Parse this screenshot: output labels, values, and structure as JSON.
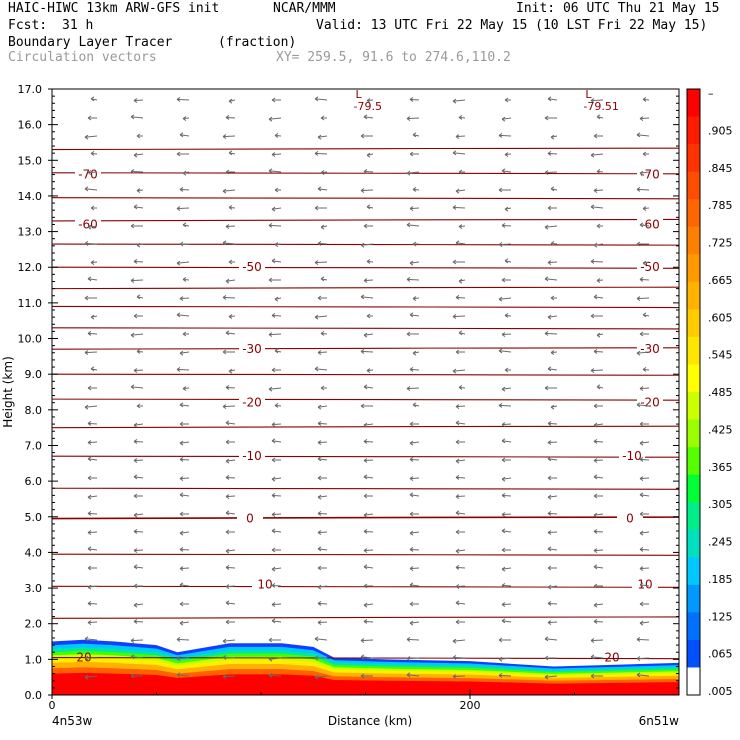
{
  "header": {
    "model": "HAIC-HIWC 13km ARW-GFS init",
    "org": "NCAR/MMM",
    "init": "Init: 06 UTC Thu 21 May 15",
    "fcst_label": "Fcst:",
    "fcst_value": "31 h",
    "valid": "Valid: 13 UTC Fri 22 May 15 (10 LST Fri 22 May 15)",
    "field": "Boundary Layer Tracer",
    "units": "(fraction)",
    "vectors": "Circulation vectors",
    "xy": "XY= 259.5, 91.6 to 274.6,110.2"
  },
  "chart_data": {
    "type": "heatmap",
    "title": "Boundary Layer Tracer (fraction)",
    "xlabel": "Distance (km)",
    "ylabel": "Height (km)",
    "xlim": [
      0,
      300
    ],
    "ylim": [
      0.0,
      17.0
    ],
    "x_ticks": [
      0,
      200
    ],
    "x_end_labels": [
      "4n53w",
      "6n51w"
    ],
    "y_ticks": [
      "0.0",
      "1.0",
      "2.0",
      "3.0",
      "4.0",
      "5.0",
      "6.0",
      "7.0",
      "8.0",
      "9.0",
      "10.0",
      "11.0",
      "12.0",
      "13.0",
      "14.0",
      "15.0",
      "16.0",
      "17.0"
    ],
    "colorbar": {
      "labels": [
        "–",
        ".905",
        ".845",
        ".785",
        ".725",
        ".665",
        ".605",
        ".545",
        ".485",
        ".425",
        ".365",
        ".305",
        ".245",
        ".185",
        ".125",
        ".065",
        ".005"
      ],
      "colors": [
        "#ff0000",
        "#ff1a00",
        "#ff3300",
        "#ff4d00",
        "#ff6600",
        "#ff8000",
        "#ff9900",
        "#ffb300",
        "#ffcc00",
        "#ffe600",
        "#ffff00",
        "#ccff00",
        "#99ff00",
        "#55ff00",
        "#00ff33",
        "#00ee88",
        "#00e0c0",
        "#00c8ff",
        "#0099ff",
        "#0070ff",
        "#0050ff",
        "#ffffff"
      ]
    },
    "tracer_top": [
      {
        "x": 0,
        "h": 1.5
      },
      {
        "x": 15,
        "h": 1.55
      },
      {
        "x": 30,
        "h": 1.5
      },
      {
        "x": 50,
        "h": 1.4
      },
      {
        "x": 60,
        "h": 1.2
      },
      {
        "x": 70,
        "h": 1.3
      },
      {
        "x": 85,
        "h": 1.45
      },
      {
        "x": 110,
        "h": 1.45
      },
      {
        "x": 125,
        "h": 1.35
      },
      {
        "x": 135,
        "h": 1.05
      },
      {
        "x": 160,
        "h": 1.0
      },
      {
        "x": 200,
        "h": 0.95
      },
      {
        "x": 240,
        "h": 0.8
      },
      {
        "x": 270,
        "h": 0.85
      },
      {
        "x": 300,
        "h": 0.9
      }
    ],
    "temperature_contours": [
      {
        "label": "-79.5",
        "h": 16.8
      },
      {
        "label": "-79.51",
        "h": 16.8
      },
      {
        "label": "-70",
        "h": 14.6
      },
      {
        "label": "-60",
        "h": 13.2
      },
      {
        "label": "-50",
        "h": 12.0
      },
      {
        "label": "-30",
        "h": 9.7
      },
      {
        "label": "-20",
        "h": 8.2
      },
      {
        "label": "-10",
        "h": 6.7
      },
      {
        "label": "0",
        "h": 4.95
      },
      {
        "label": "10",
        "h": 3.1
      },
      {
        "label": "20",
        "h": 1.05
      }
    ],
    "contour_levels_km": [
      15.3,
      14.65,
      13.95,
      13.3,
      12.65,
      12.0,
      11.4,
      10.9,
      10.3,
      9.7,
      9.0,
      8.3,
      7.5,
      6.7,
      5.8,
      4.95,
      3.95,
      3.05,
      2.15,
      1.05
    ],
    "lows": [
      {
        "label": "L",
        "value": "-79.5",
        "x": 150
      },
      {
        "label": "L",
        "value": "-79.51",
        "x": 260
      }
    ]
  }
}
